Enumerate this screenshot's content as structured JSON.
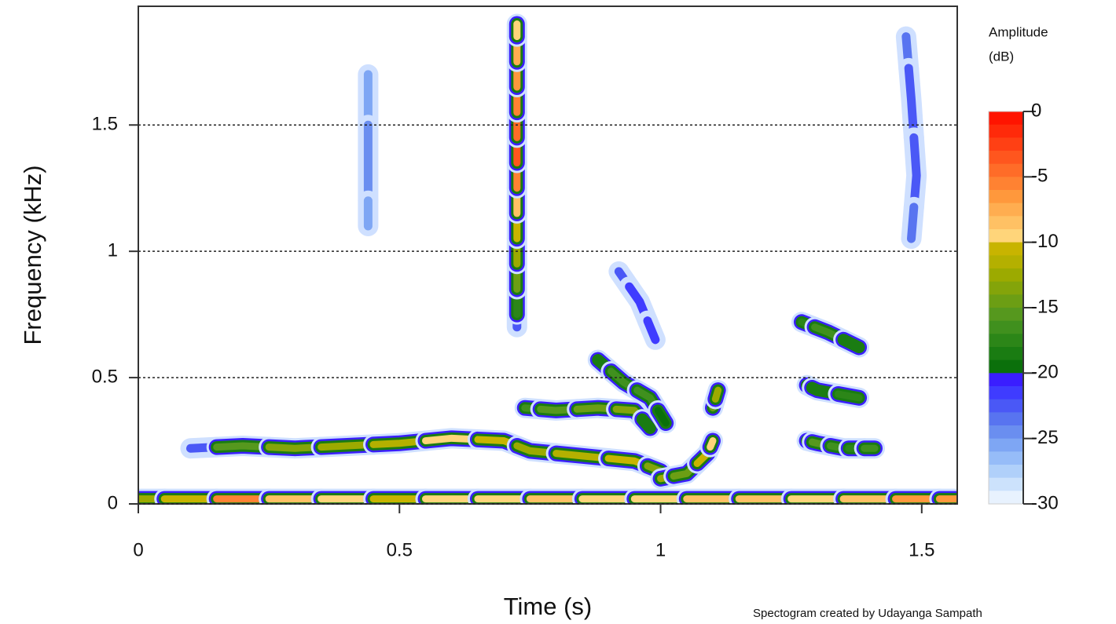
{
  "chart_data": {
    "type": "spectrogram",
    "x_label": "Time (s)",
    "y_label": "Frequency (kHz)",
    "xlim": [
      0,
      1.568
    ],
    "ylim": [
      0,
      1.97
    ],
    "xticks": [
      0,
      0.5,
      1,
      1.5
    ],
    "yticks": [
      0,
      0.5,
      1,
      1.5
    ],
    "grid": true,
    "colorbar_title": [
      "Amplitude",
      "(dB)"
    ],
    "clim": [
      -30,
      0
    ],
    "cticks": [
      0,
      -5,
      -10,
      -15,
      -20,
      -25,
      -30
    ],
    "colors": [
      "#ff1400",
      "#ff2a0a",
      "#ff4014",
      "#ff561e",
      "#ff6c28",
      "#ff8232",
      "#ff983c",
      "#ffad50",
      "#ffc164",
      "#ffd57a",
      "#c8b400",
      "#b4b000",
      "#9caa00",
      "#84a40a",
      "#6c9e14",
      "#56981e",
      "#40901e",
      "#2c8618",
      "#1a7c12",
      "#0b700b",
      "#3a1eff",
      "#3f3cff",
      "#4a58f6",
      "#5874f0",
      "#6a8ef0",
      "#7ea6f4",
      "#96bcf8",
      "#b0d0fa",
      "#cce2fc",
      "#e8f2fe"
    ],
    "traces": [
      {
        "time": [
          0,
          0.1,
          0.2,
          0.3,
          0.4,
          0.5,
          0.6,
          0.7,
          0.8,
          0.9,
          1.0,
          1.1,
          1.2,
          1.3,
          1.4,
          1.5,
          1.568
        ],
        "freq": [
          0.02,
          0.02,
          0.02,
          0.02,
          0.02,
          0.02,
          0.02,
          0.02,
          0.02,
          0.02,
          0.02,
          0.02,
          0.02,
          0.02,
          0.02,
          0.02,
          0.02
        ],
        "amp": [
          -12,
          -10,
          -5,
          -8,
          -9,
          -10,
          -9,
          -9,
          -8,
          -9,
          -9,
          -8,
          -8,
          -9,
          -8,
          -6,
          -6
        ]
      },
      {
        "time": [
          0.725,
          0.725,
          0.725,
          0.725,
          0.725,
          0.725,
          0.725,
          0.725,
          0.725,
          0.725,
          0.725,
          0.725,
          0.725
        ],
        "freq": [
          0.7,
          0.8,
          0.9,
          1.0,
          1.1,
          1.2,
          1.3,
          1.4,
          1.5,
          1.6,
          1.7,
          1.8,
          1.9
        ],
        "amp": [
          -22,
          -17,
          -14,
          -12,
          -10,
          -8,
          -5,
          -3,
          -4,
          -5,
          -6,
          -7,
          -9
        ]
      },
      {
        "time": [
          0.1,
          0.2,
          0.3,
          0.4,
          0.5,
          0.6,
          0.7,
          0.75,
          0.85,
          0.95,
          1.0
        ],
        "freq": [
          0.22,
          0.23,
          0.22,
          0.23,
          0.24,
          0.26,
          0.25,
          0.21,
          0.19,
          0.17,
          0.13
        ],
        "amp": [
          -22,
          -15,
          -13,
          -12,
          -11,
          -9,
          -10,
          -12,
          -11,
          -10,
          -13
        ]
      },
      {
        "time": [
          0.74,
          0.8,
          0.88,
          0.95,
          0.98
        ],
        "freq": [
          0.38,
          0.37,
          0.38,
          0.37,
          0.3
        ],
        "amp": [
          -16,
          -15,
          -14,
          -13,
          -18
        ]
      },
      {
        "time": [
          0.88,
          0.93,
          0.98,
          1.01
        ],
        "freq": [
          0.57,
          0.48,
          0.42,
          0.32
        ],
        "amp": [
          -18,
          -16,
          -16,
          -19
        ]
      },
      {
        "time": [
          1.0,
          1.05,
          1.09,
          1.1
        ],
        "freq": [
          0.1,
          0.12,
          0.2,
          0.25
        ],
        "amp": [
          -12,
          -14,
          -10,
          -9
        ]
      },
      {
        "time": [
          1.1,
          1.11
        ],
        "freq": [
          0.38,
          0.45
        ],
        "amp": [
          -14,
          -12
        ]
      },
      {
        "time": [
          0.92,
          0.96,
          0.99
        ],
        "freq": [
          0.92,
          0.8,
          0.65
        ],
        "amp": [
          -22,
          -21,
          -21
        ]
      },
      {
        "time": [
          1.27,
          1.32,
          1.38
        ],
        "freq": [
          0.72,
          0.68,
          0.62
        ],
        "amp": [
          -17,
          -16,
          -18
        ]
      },
      {
        "time": [
          1.28,
          1.3,
          1.35,
          1.37,
          1.41
        ],
        "freq": [
          0.25,
          0.24,
          0.22,
          0.22,
          0.22
        ],
        "amp": [
          -16,
          -15,
          -16,
          -17,
          -16
        ]
      },
      {
        "time": [
          1.28,
          1.3,
          1.38
        ],
        "freq": [
          0.47,
          0.45,
          0.42
        ],
        "amp": [
          -16,
          -18,
          -17
        ]
      },
      {
        "time": [
          1.47,
          1.48,
          1.49,
          1.48
        ],
        "freq": [
          1.85,
          1.6,
          1.3,
          1.05
        ],
        "amp": [
          -23,
          -22,
          -22,
          -23
        ]
      },
      {
        "time": [
          0.44,
          0.44,
          0.44
        ],
        "freq": [
          1.7,
          1.3,
          1.1
        ],
        "amp": [
          -25,
          -24,
          -25
        ]
      }
    ],
    "credit": "Spectogram created by Udayanga Sampath"
  }
}
